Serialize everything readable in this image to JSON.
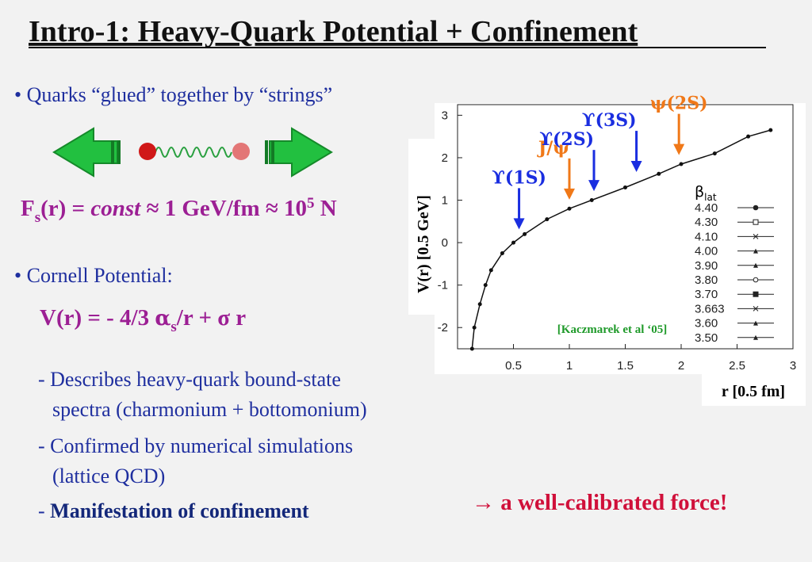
{
  "title": "Intro-1: Heavy-Quark Potential + Confinement",
  "bullet1": "Quarks “glued” together by “strings”",
  "force": [
    "F",
    "s",
    "(r) = ",
    "const",
    " ≈ 1 GeV/fm ≈ 10",
    "5",
    " N"
  ],
  "bullet2": "Cornell Potential:",
  "cornell": [
    "V(r) = - 4/3 ",
    "α",
    "s",
    "/r + σ r"
  ],
  "sub_bullets": [
    [
      "- Describes heavy-quark bound-state",
      "spectra (charmonium + bottomonium)"
    ],
    [
      "- Confirmed by numerical simulations",
      "(lattice QCD)"
    ],
    [
      "- ",
      "Manifestation of confinement"
    ]
  ],
  "conclusion": "→  a well-calibrated force!",
  "plot": {
    "xlabel": "r [0.5 fm]",
    "ylabel": "V(r) [0.5 GeV]",
    "xlim": [
      0,
      3
    ],
    "ylim": [
      -2.5,
      3.25
    ],
    "xticks": [
      0.5,
      1,
      1.5,
      2,
      2.5,
      3
    ],
    "yticks": [
      -2,
      -1,
      0,
      1,
      2,
      3
    ],
    "citation": "[Kaczmarek et al ‘05]",
    "legend_title": [
      "β",
      "lat"
    ],
    "legend": [
      "4.40",
      "4.30",
      "4.10",
      "4.00",
      "3.90",
      "3.80",
      "3.70",
      "3.663",
      "3.60",
      "3.50"
    ],
    "curve": {
      "x": [
        0.13,
        0.15,
        0.2,
        0.25,
        0.3,
        0.4,
        0.5,
        0.6,
        0.8,
        1.0,
        1.2,
        1.5,
        1.8,
        2.0,
        2.3,
        2.6,
        2.8
      ],
      "y": [
        -2.5,
        -2.0,
        -1.45,
        -1.0,
        -0.65,
        -0.25,
        0.0,
        0.2,
        0.55,
        0.8,
        1.0,
        1.3,
        1.62,
        1.85,
        2.1,
        2.5,
        2.65
      ]
    },
    "states": [
      {
        "label": "ϒ(1S)",
        "x": 0.55,
        "y": 0.2,
        "color": "#1a2ee0"
      },
      {
        "label": "J/ψ",
        "x": 1.0,
        "y": 0.9,
        "color": "#f07818"
      },
      {
        "label": "ϒ(2S)",
        "x": 1.22,
        "y": 1.1,
        "color": "#1a2ee0"
      },
      {
        "label": "ϒ(3S)",
        "x": 1.6,
        "y": 1.55,
        "color": "#1a2ee0"
      },
      {
        "label": "ψ(2S)",
        "x": 1.98,
        "y": 1.95,
        "color": "#f07818"
      }
    ]
  }
}
